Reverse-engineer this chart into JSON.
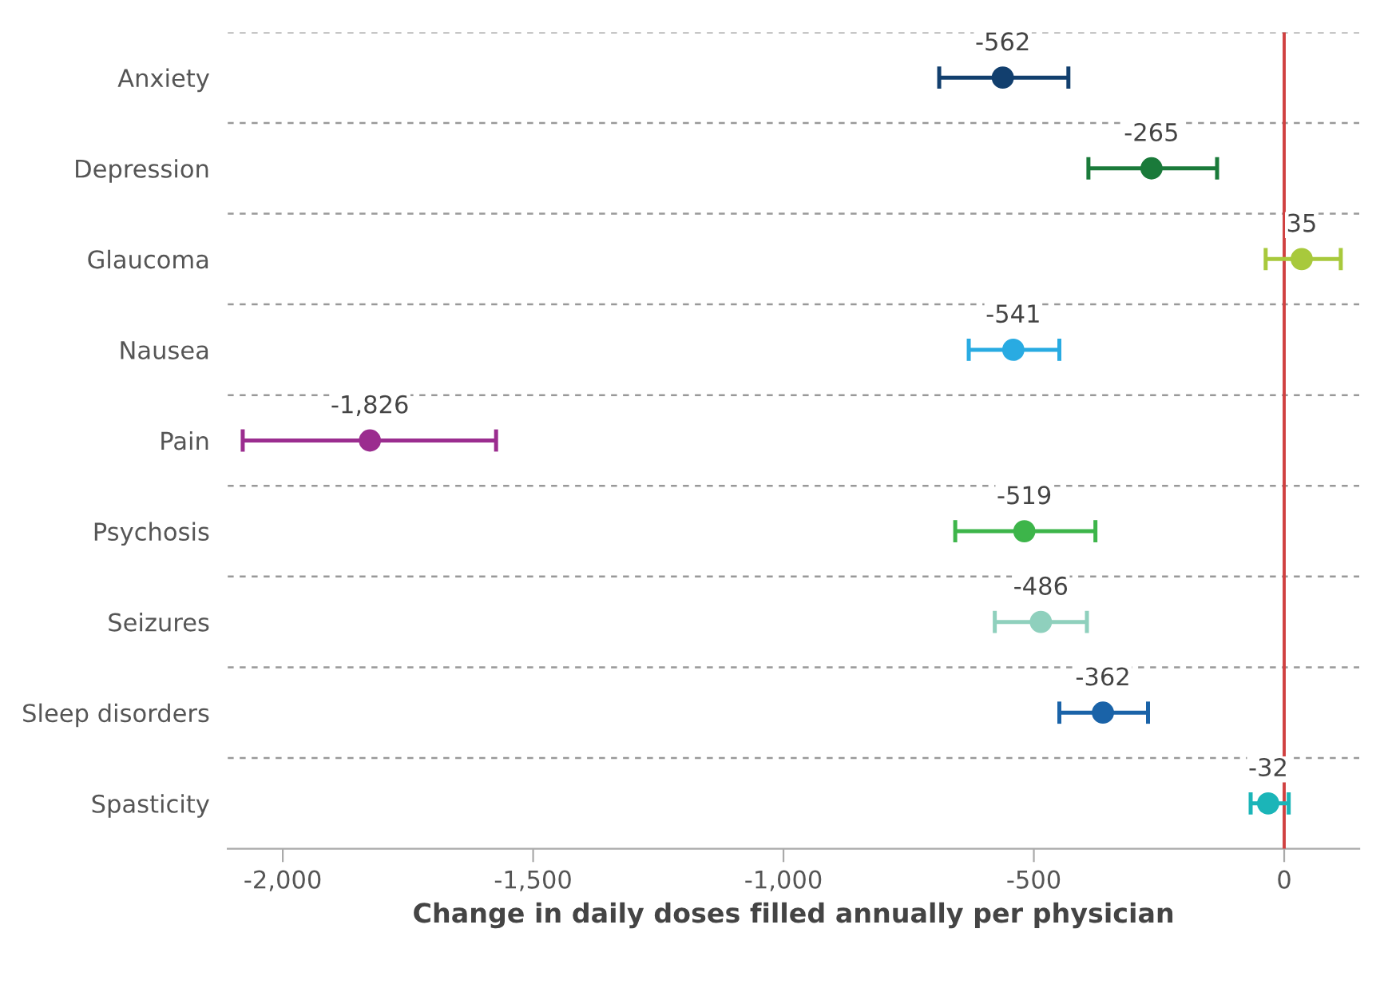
{
  "chart_data": {
    "type": "scatter",
    "orientation": "horizontal",
    "xlabel": "Change in daily doses filled annually per physician",
    "categories": [
      "Anxiety",
      "Depression",
      "Glaucoma",
      "Nausea",
      "Pain",
      "Psychosis",
      "Seizures",
      "Sleep disorders",
      "Spasticity"
    ],
    "values": [
      -562,
      -265,
      35,
      -541,
      -1826,
      -519,
      -486,
      -362,
      -32
    ],
    "value_labels": [
      "-562",
      "-265",
      "35",
      "-541",
      "-1,826",
      "-519",
      "-486",
      "-362",
      "-32"
    ],
    "errors": [
      [
        -689,
        -431
      ],
      [
        -391,
        -134
      ],
      [
        -37,
        113
      ],
      [
        -630,
        -449
      ],
      [
        -2080,
        -1574
      ],
      [
        -657,
        -377
      ],
      [
        -578,
        -394
      ],
      [
        -449,
        -272
      ],
      [
        -67,
        9
      ]
    ],
    "colors": [
      "#123f6e",
      "#1a7a3a",
      "#a8c93c",
      "#29abe2",
      "#9b2d8f",
      "#3db54a",
      "#8fd0bd",
      "#1a63a8",
      "#1bb5b8"
    ],
    "xlim": [
      -2110,
      150
    ],
    "xticks": [
      {
        "value": -2000,
        "label": "-2,000"
      },
      {
        "value": -1500,
        "label": "-1,500"
      },
      {
        "value": -1000,
        "label": "-1,000"
      },
      {
        "value": -500,
        "label": "-500"
      },
      0
    ],
    "ref_lines": [
      {
        "axis": "x",
        "value": 0,
        "color": "#d04040"
      }
    ],
    "grid": "y",
    "marker": "circle"
  }
}
